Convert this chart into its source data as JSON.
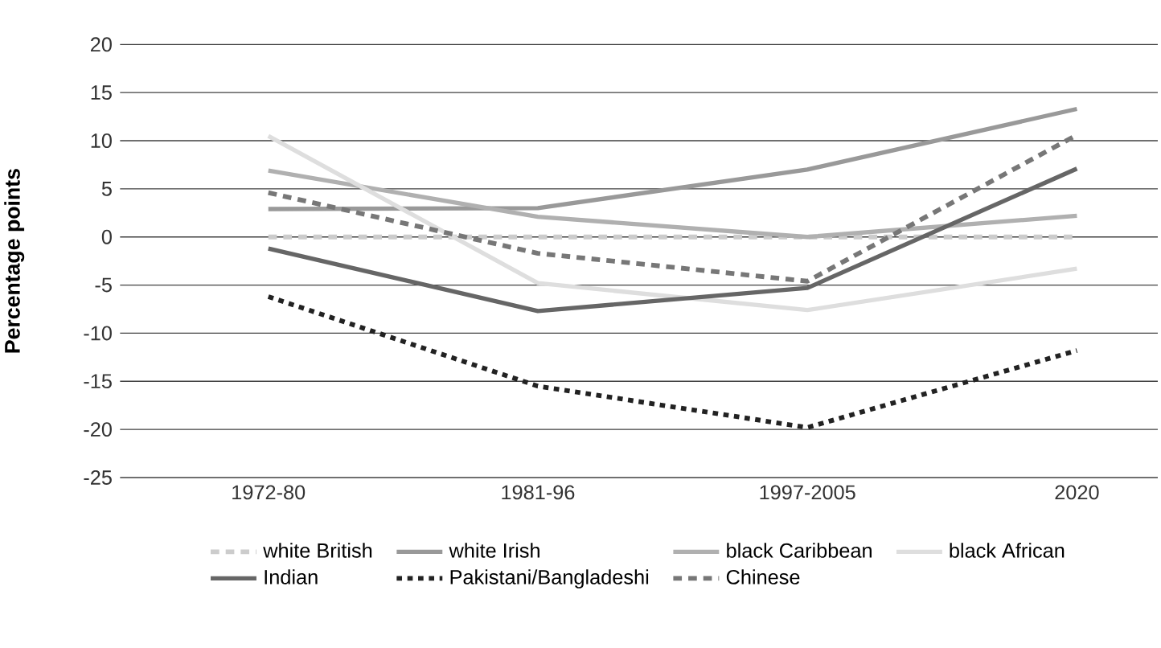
{
  "chart_data": {
    "type": "line",
    "ylabel": "Percentage points",
    "categories": [
      "1972-80",
      "1981-96",
      "1997-2005",
      "2020"
    ],
    "ylim": [
      -25,
      20
    ],
    "yticks": [
      -25,
      -20,
      -15,
      -10,
      -5,
      0,
      5,
      10,
      15,
      20
    ],
    "grid": "y",
    "legend": "bottom",
    "marker": "none",
    "series": [
      {
        "name": "white British",
        "color": "#cccccc",
        "line_style": "dashed",
        "values": [
          0,
          0,
          0,
          0
        ]
      },
      {
        "name": "white Irish",
        "color": "#999999",
        "line_style": "solid",
        "values": [
          2.9,
          3,
          7,
          13.3
        ]
      },
      {
        "name": "black Caribbean",
        "color": "#b0b0b0",
        "line_style": "solid",
        "values": [
          6.9,
          2.1,
          0,
          2.2
        ]
      },
      {
        "name": "black African",
        "color": "#dedede",
        "line_style": "solid",
        "values": [
          10.5,
          -4.8,
          -7.6,
          -3.3
        ]
      },
      {
        "name": "Indian",
        "color": "#666666",
        "line_style": "solid",
        "values": [
          -1.2,
          -7.7,
          -5.3,
          7.1
        ]
      },
      {
        "name": "Pakistani/Bangladeshi",
        "color": "#222222",
        "line_style": "dotted",
        "values": [
          -6.2,
          -15.5,
          -19.8,
          -11.8
        ]
      },
      {
        "name": "Chinese",
        "color": "#777777",
        "line_style": "dashed",
        "values": [
          4.6,
          -1.7,
          -4.6,
          10.6
        ]
      }
    ]
  }
}
